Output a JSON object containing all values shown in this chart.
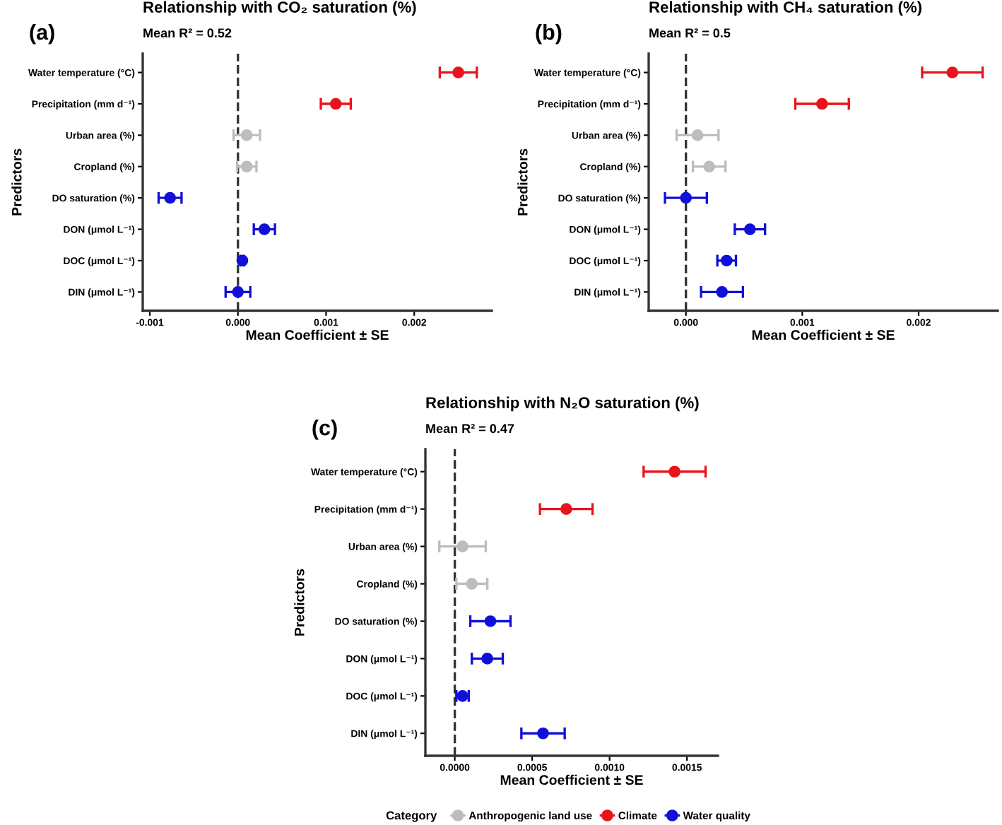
{
  "chart_data": [
    {
      "type": "scatter",
      "orientation": "horizontal",
      "title": "Relationship with CO₂ saturation (%)",
      "subtitle": "Mean R² = 0.52",
      "annotations": [
        "(a)"
      ],
      "xlabel": "Mean Coefficient ± SE",
      "ylabel": "Predictors",
      "categories": [
        "Water temperature (°C)",
        "Precipitation (mm d⁻¹)",
        "Urban area (%)",
        "Cropland (%)",
        "DO saturation (%)",
        "DON (μmol L⁻¹)",
        "DOC (μmol L⁻¹)",
        "DIN (μmol L⁻¹)"
      ],
      "series": [
        {
          "color": "#bdbdbd",
          "values": [
            null,
            null,
            0.0001,
            0.0001,
            null,
            null,
            null,
            null
          ],
          "errors": [
            null,
            null,
            0.00015,
            0.00011,
            null,
            null,
            null,
            null
          ]
        },
        {
          "color": "#e8141c",
          "values": [
            0.0025,
            0.00111,
            null,
            null,
            null,
            null,
            null,
            null
          ],
          "errors": [
            0.00021,
            0.00017,
            null,
            null,
            null,
            null,
            null,
            null
          ]
        },
        {
          "color": "#1010d8",
          "values": [
            null,
            null,
            null,
            null,
            -0.00077,
            0.0003,
            5e-05,
            0.0
          ],
          "errors": [
            null,
            null,
            null,
            null,
            0.00013,
            0.00012,
            2e-05,
            0.00014
          ]
        }
      ],
      "xlim": [
        -0.00108,
        0.00288
      ],
      "xticks": [
        {
          "value": -0.001,
          "label": "-0.001"
        },
        {
          "value": 0.0,
          "label": "0.000"
        },
        {
          "value": 0.001,
          "label": "0.001"
        },
        {
          "value": 0.002,
          "label": "0.002"
        }
      ],
      "ref_lines": [
        {
          "axis": "x",
          "value": 0,
          "line_style": "dashed",
          "color": "#333333"
        }
      ],
      "marker": "circle",
      "grid": false,
      "legend": false
    },
    {
      "type": "scatter",
      "orientation": "horizontal",
      "title": "Relationship with CH₄ saturation (%)",
      "subtitle": "Mean R² = 0.5",
      "annotations": [
        "(b)"
      ],
      "xlabel": "Mean Coefficient ± SE",
      "ylabel": "Predictors",
      "categories": [
        "Water temperature (°C)",
        "Precipitation (mm d⁻¹)",
        "Urban area (%)",
        "Cropland (%)",
        "DO saturation (%)",
        "DON (μmol L⁻¹)",
        "DOC (μmol L⁻¹)",
        "DIN (μmol L⁻¹)"
      ],
      "series": [
        {
          "color": "#bdbdbd",
          "values": [
            null,
            null,
            0.0001,
            0.0002,
            null,
            null,
            null,
            null
          ],
          "errors": [
            null,
            null,
            0.00018,
            0.00014,
            null,
            null,
            null,
            null
          ]
        },
        {
          "color": "#e8141c",
          "values": [
            0.00229,
            0.00117,
            null,
            null,
            null,
            null,
            null,
            null
          ],
          "errors": [
            0.00026,
            0.00023,
            null,
            null,
            null,
            null,
            null,
            null
          ]
        },
        {
          "color": "#1010d8",
          "values": [
            null,
            null,
            null,
            null,
            0.0,
            0.00055,
            0.00035,
            0.00031
          ],
          "errors": [
            null,
            null,
            null,
            null,
            0.00018,
            0.00013,
            8e-05,
            0.00018
          ]
        }
      ],
      "xlim": [
        -0.00032,
        0.00268
      ],
      "xticks": [
        {
          "value": 0.0,
          "label": "0.000"
        },
        {
          "value": 0.001,
          "label": "0.001"
        },
        {
          "value": 0.002,
          "label": "0.002"
        }
      ],
      "ref_lines": [
        {
          "axis": "x",
          "value": 0,
          "line_style": "dashed",
          "color": "#333333"
        }
      ],
      "marker": "circle",
      "grid": false,
      "legend": false
    },
    {
      "type": "scatter",
      "orientation": "horizontal",
      "title": "Relationship with N₂O saturation (%)",
      "subtitle": "Mean R² = 0.47",
      "annotations": [
        "(c)"
      ],
      "xlabel": "Mean Coefficient ± SE",
      "ylabel": "Predictors",
      "legend_title": "Category",
      "categories": [
        "Water temperature (°C)",
        "Precipitation (mm d⁻¹)",
        "Urban area (%)",
        "Cropland (%)",
        "DO saturation (%)",
        "DON (μmol L⁻¹)",
        "DOC (μmol L⁻¹)",
        "DIN (μmol L⁻¹)"
      ],
      "series": [
        {
          "name": "Anthropogenic land use",
          "color": "#bdbdbd",
          "values": [
            null,
            null,
            5e-05,
            0.00011,
            null,
            null,
            null,
            null
          ],
          "errors": [
            null,
            null,
            0.00015,
            0.0001,
            null,
            null,
            null,
            null
          ]
        },
        {
          "name": "Climate",
          "color": "#e8141c",
          "values": [
            0.00142,
            0.00072,
            null,
            null,
            null,
            null,
            null,
            null
          ],
          "errors": [
            0.0002,
            0.00017,
            null,
            null,
            null,
            null,
            null,
            null
          ]
        },
        {
          "name": "Water quality",
          "color": "#1010d8",
          "values": [
            null,
            null,
            null,
            null,
            0.00023,
            0.00021,
            5e-05,
            0.00057
          ],
          "errors": [
            null,
            null,
            null,
            null,
            0.00013,
            0.0001,
            4e-05,
            0.00014
          ]
        }
      ],
      "xlim": [
        -0.00019,
        0.0017
      ],
      "xticks": [
        {
          "value": 0.0,
          "label": "0.0000"
        },
        {
          "value": 0.0005,
          "label": "0.0005"
        },
        {
          "value": 0.001,
          "label": "0.0010"
        },
        {
          "value": 0.0015,
          "label": "0.0015"
        }
      ],
      "ref_lines": [
        {
          "axis": "x",
          "value": 0,
          "line_style": "dashed",
          "color": "#333333"
        }
      ],
      "marker": "circle",
      "grid": false,
      "legend": "bottom"
    }
  ]
}
